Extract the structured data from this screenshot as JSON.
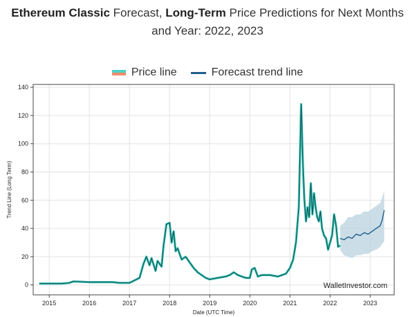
{
  "heading": {
    "bold1": "Ethereum Classic",
    "text1": " Forecast, ",
    "bold2": "Long-Term",
    "text2": " Price Predictions for Next Months and Year: 2022, 2023"
  },
  "colors": {
    "price": "#3cc4b4",
    "price_alt": "#f08c6c",
    "forecast": "#1f5f8b",
    "band": "#b9d2df",
    "grid": "#e3e3e3"
  },
  "chart_data": {
    "type": "line",
    "xlabel": "Date (UTC Time)",
    "ylabel": "Trend Line (Long Term)",
    "xlim": [
      2014.6,
      2023.6
    ],
    "ylim": [
      -7,
      142
    ],
    "x_ticks": [
      "2015",
      "2016",
      "2017",
      "2018",
      "2019",
      "2020",
      "2021",
      "2022",
      "2023"
    ],
    "y_ticks": [
      0,
      20,
      40,
      60,
      80,
      100,
      120,
      140
    ],
    "grid": true,
    "legend": "top-center",
    "legend_entries": [
      "Price line",
      "Forecast trend line"
    ],
    "watermark": "WalletInvestor.com",
    "series": [
      {
        "name": "Price line",
        "x": [
          2014.75,
          2015.0,
          2015.3,
          2015.5,
          2015.6,
          2016.0,
          2016.4,
          2016.58,
          2016.75,
          2017.0,
          2017.25,
          2017.35,
          2017.42,
          2017.5,
          2017.55,
          2017.65,
          2017.7,
          2017.8,
          2017.85,
          2017.92,
          2018.0,
          2018.05,
          2018.1,
          2018.15,
          2018.2,
          2018.3,
          2018.4,
          2018.5,
          2018.6,
          2018.7,
          2018.8,
          2018.9,
          2019.0,
          2019.2,
          2019.4,
          2019.5,
          2019.6,
          2019.7,
          2019.8,
          2019.9,
          2020.0,
          2020.05,
          2020.12,
          2020.2,
          2020.3,
          2020.5,
          2020.7,
          2020.9,
          2021.0,
          2021.08,
          2021.15,
          2021.22,
          2021.28,
          2021.33,
          2021.36,
          2021.4,
          2021.44,
          2021.48,
          2021.52,
          2021.56,
          2021.6,
          2021.64,
          2021.68,
          2021.72,
          2021.76,
          2021.8,
          2021.85,
          2021.9,
          2021.95,
          2022.0,
          2022.05,
          2022.1,
          2022.15,
          2022.2,
          2022.25
        ],
        "y": [
          1,
          1,
          1,
          1.5,
          2.5,
          2,
          2,
          2,
          1.5,
          1.5,
          5,
          15,
          20,
          14,
          19,
          10,
          17,
          13,
          28,
          43,
          44,
          30,
          38,
          24,
          26,
          18,
          20,
          16,
          12,
          9,
          7,
          5,
          4,
          5,
          6,
          7,
          9,
          7,
          6,
          5,
          5,
          11,
          12,
          6,
          7,
          7,
          6,
          8,
          12,
          18,
          30,
          55,
          128,
          80,
          60,
          45,
          55,
          48,
          72,
          50,
          65,
          55,
          48,
          45,
          52,
          40,
          35,
          33,
          25,
          30,
          35,
          50,
          42,
          27,
          28
        ]
      },
      {
        "name": "Forecast trend line",
        "x": [
          2022.25,
          2022.35,
          2022.45,
          2022.55,
          2022.65,
          2022.75,
          2022.85,
          2022.95,
          2023.05,
          2023.15,
          2023.25,
          2023.3,
          2023.35
        ],
        "y": [
          33,
          32,
          34,
          33,
          36,
          35,
          37,
          36,
          38,
          40,
          42,
          46,
          53
        ],
        "band_lower": [
          25,
          21,
          20,
          19,
          21,
          21,
          22,
          22,
          24,
          25,
          27,
          29,
          31
        ],
        "band_upper": [
          42,
          44,
          48,
          48,
          50,
          50,
          52,
          52,
          54,
          56,
          58,
          62,
          67
        ]
      }
    ]
  }
}
